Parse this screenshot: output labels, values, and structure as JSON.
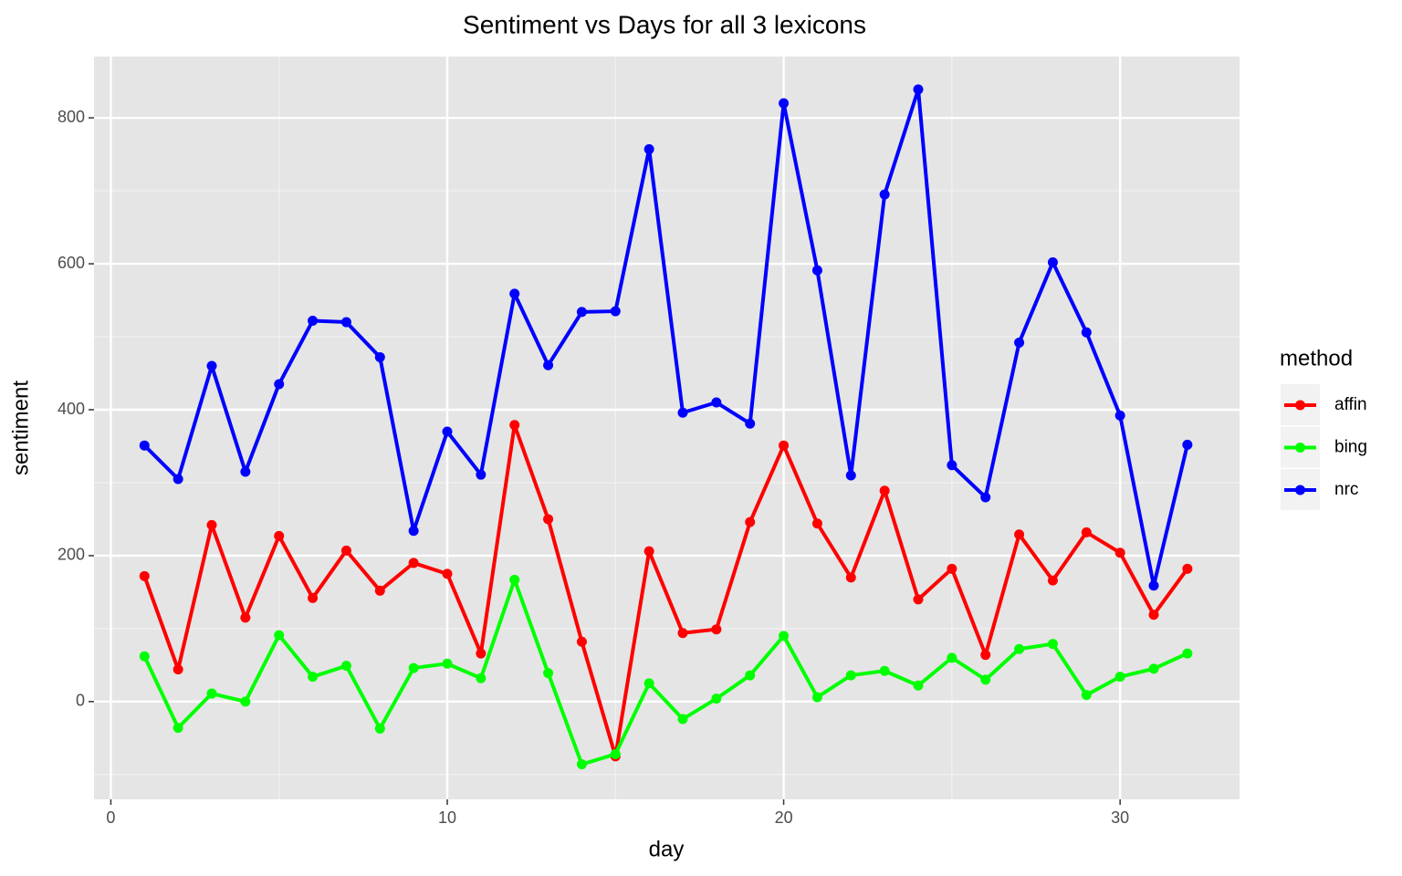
{
  "chart_data": {
    "type": "line",
    "title": "Sentiment vs Days for all 3 lexicons",
    "x_label": "day",
    "y_label": "sentiment",
    "legend_title": "method",
    "legend_position": "right",
    "grid": true,
    "x": [
      1,
      2,
      3,
      4,
      5,
      6,
      7,
      8,
      9,
      10,
      11,
      12,
      13,
      14,
      15,
      16,
      17,
      18,
      19,
      20,
      21,
      22,
      23,
      24,
      25,
      26,
      27,
      28,
      29,
      30,
      31,
      32
    ],
    "series": [
      {
        "name": "affin",
        "color": "#ff0000",
        "values": [
          172,
          44,
          242,
          115,
          227,
          142,
          207,
          152,
          190,
          175,
          66,
          379,
          250,
          82,
          -75,
          206,
          94,
          99,
          246,
          351,
          244,
          170,
          289,
          140,
          182,
          64,
          229,
          166,
          232,
          204,
          119,
          182
        ]
      },
      {
        "name": "bing",
        "color": "#00ff00",
        "values": [
          62,
          -36,
          11,
          0,
          91,
          34,
          49,
          -37,
          46,
          52,
          32,
          167,
          39,
          -86,
          -72,
          25,
          -24,
          4,
          36,
          90,
          6,
          36,
          42,
          22,
          60,
          30,
          72,
          79,
          9,
          34,
          45,
          66
        ]
      },
      {
        "name": "nrc",
        "color": "#0000ff",
        "values": [
          351,
          305,
          460,
          315,
          435,
          522,
          520,
          472,
          234,
          370,
          311,
          559,
          461,
          534,
          535,
          757,
          396,
          410,
          381,
          820,
          591,
          310,
          695,
          839,
          324,
          280,
          492,
          602,
          506,
          392,
          159,
          352
        ]
      }
    ],
    "xlim": [
      -0.5,
      33.55
    ],
    "ylim": [
      -134,
      884
    ],
    "xticks": [
      0,
      10,
      20,
      30
    ],
    "yticks": [
      0,
      200,
      400,
      600,
      800
    ],
    "xminor": [
      5,
      15,
      25
    ],
    "yminor": [
      -100,
      100,
      300,
      500,
      700
    ]
  }
}
